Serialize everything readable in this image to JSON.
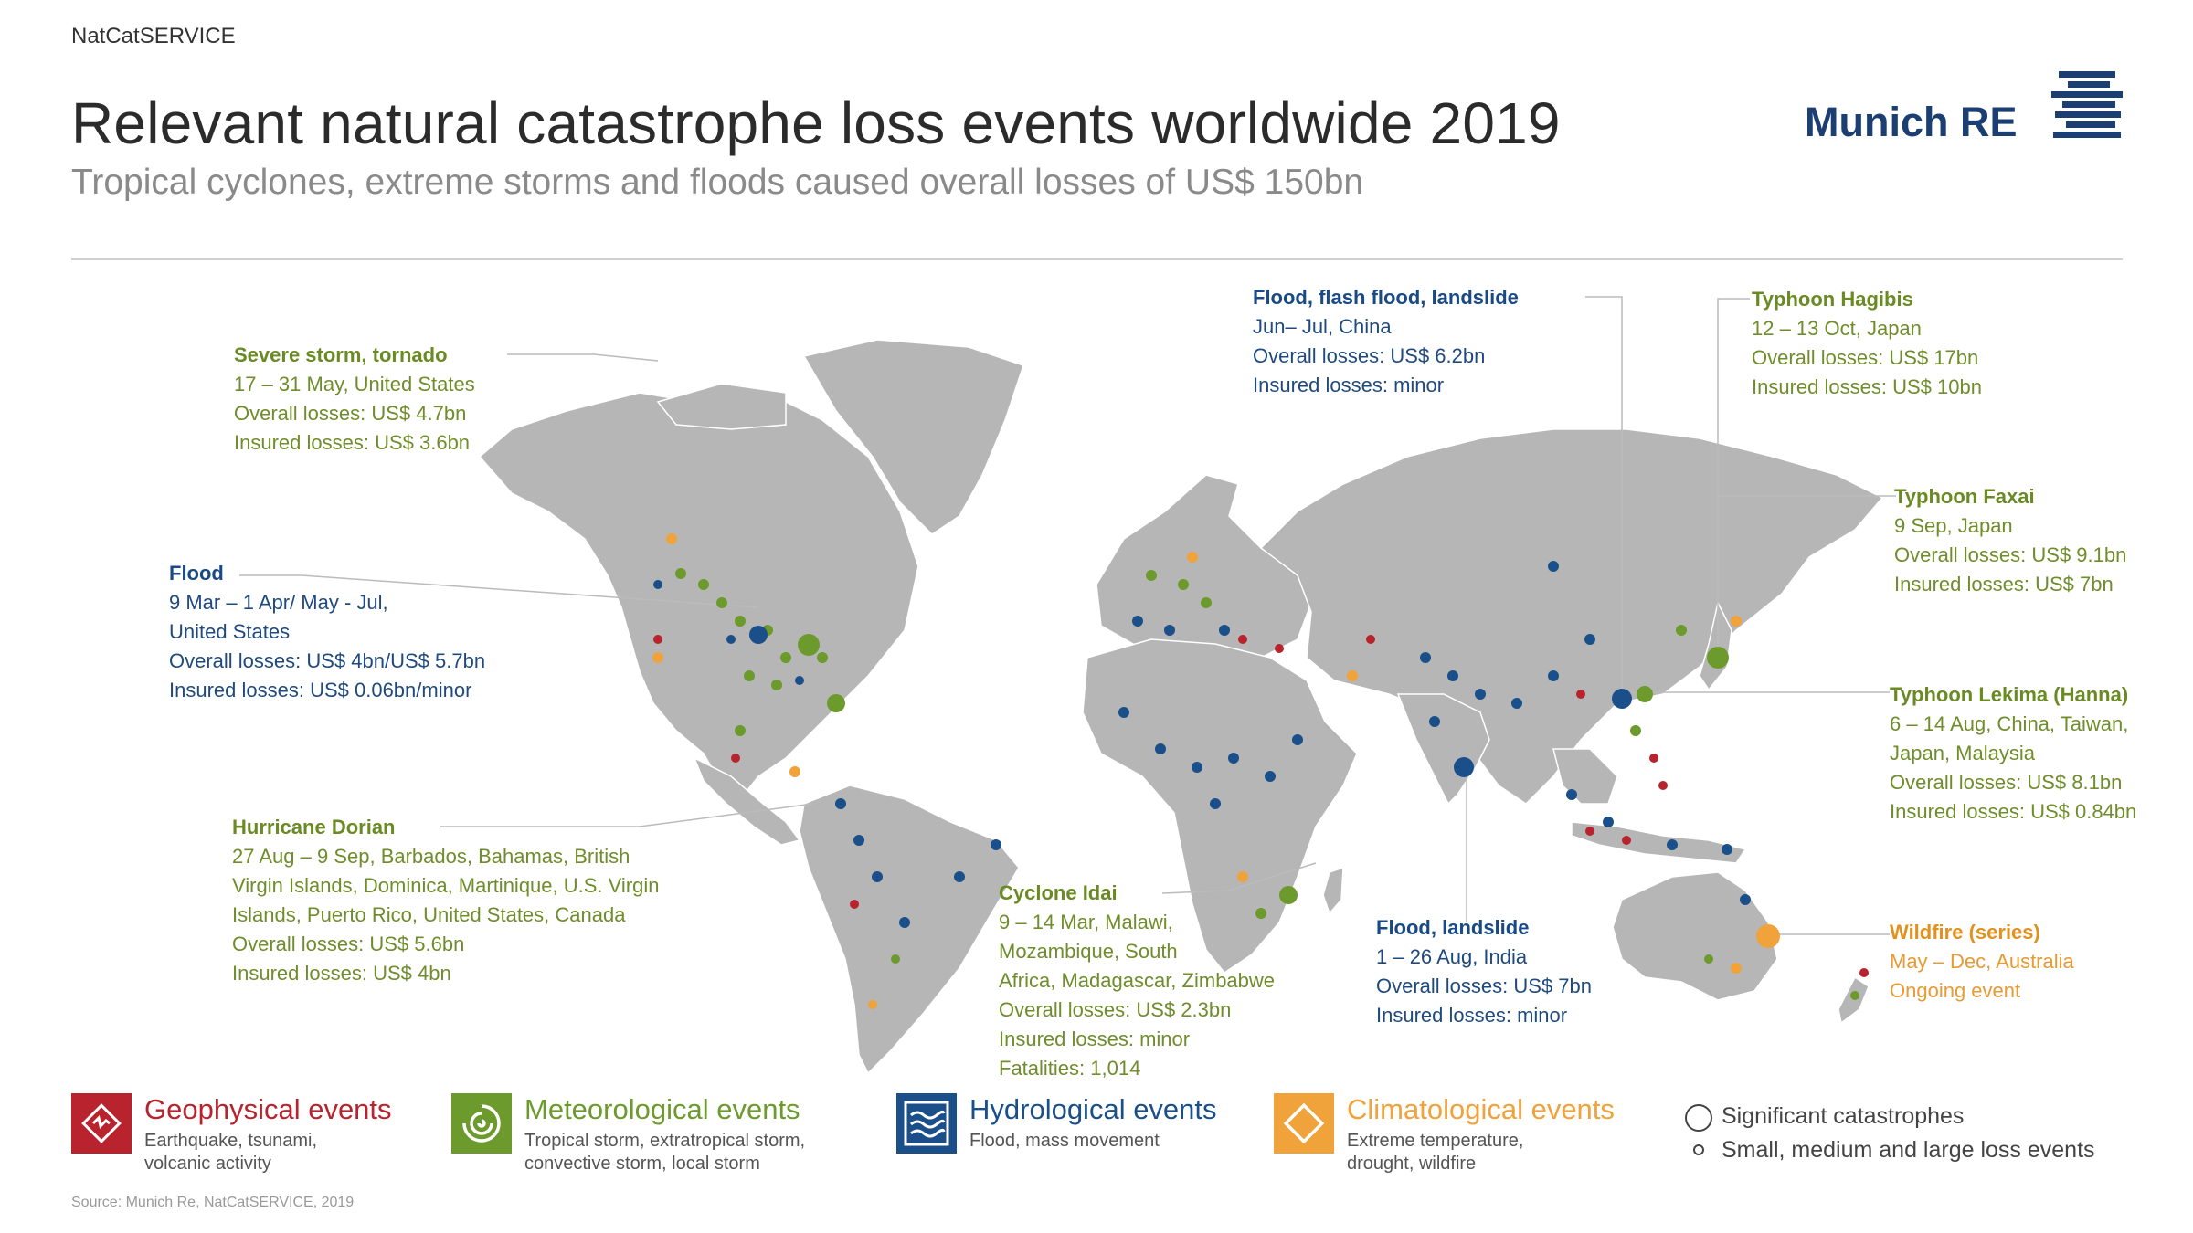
{
  "header": {
    "brand": "NatCatSERVICE",
    "title": "Relevant natural catastrophe loss events worldwide 2019",
    "subtitle": "Tropical cyclones, extreme storms and floods caused overall losses of US$ 150bn",
    "logo": "Munich RE"
  },
  "colors": {
    "geophysical": "#b8232d",
    "meteorological": "#6d9a2c",
    "hydrological": "#1b4f8a",
    "climatological": "#f0a23b",
    "land": "#b6b6b6"
  },
  "callouts": [
    {
      "id": "severe-storm",
      "category": "meteorological",
      "title": "Severe storm, tornado",
      "lines": [
        "17 – 31 May, United States",
        "Overall losses: US$ 4.7bn",
        "Insured losses: US$ 3.6bn"
      ]
    },
    {
      "id": "flood-us",
      "category": "hydrological",
      "title": "Flood",
      "lines": [
        "9 Mar – 1 Apr/ May - Jul,",
        "United States",
        "Overall losses: US$ 4bn/US$ 5.7bn",
        "Insured losses: US$ 0.06bn/minor"
      ]
    },
    {
      "id": "hurricane-dorian",
      "category": "meteorological",
      "title": "Hurricane Dorian",
      "lines": [
        "27 Aug – 9 Sep, Barbados, Bahamas, British",
        "Virgin Islands, Dominica, Martinique, U.S. Virgin",
        "Islands, Puerto Rico, United States, Canada",
        "Overall losses: US$ 5.6bn",
        "Insured losses: US$ 4bn"
      ]
    },
    {
      "id": "cyclone-idai",
      "category": "meteorological",
      "title": "Cyclone Idai",
      "lines": [
        "9 – 14 Mar, Malawi,",
        "Mozambique, South",
        "Africa, Madagascar, Zimbabwe",
        "Overall losses: US$ 2.3bn",
        "Insured losses: minor",
        "Fatalities: 1,014"
      ]
    },
    {
      "id": "flood-china",
      "category": "hydrological",
      "title": "Flood, flash flood, landslide",
      "lines": [
        "Jun– Jul, China",
        "Overall losses: US$ 6.2bn",
        "Insured losses: minor"
      ]
    },
    {
      "id": "flood-india",
      "category": "hydrological",
      "title": "Flood, landslide",
      "lines": [
        "1 – 26 Aug, India",
        "Overall losses: US$ 7bn",
        "Insured losses: minor"
      ]
    },
    {
      "id": "typhoon-hagibis",
      "category": "meteorological",
      "title": "Typhoon Hagibis",
      "lines": [
        "12 – 13 Oct, Japan",
        "Overall losses: US$ 17bn",
        "Insured losses: US$ 10bn"
      ]
    },
    {
      "id": "typhoon-faxai",
      "category": "meteorological",
      "title": "Typhoon Faxai",
      "lines": [
        "9 Sep, Japan",
        "Overall losses: US$ 9.1bn",
        "Insured losses: US$ 7bn"
      ]
    },
    {
      "id": "typhoon-lekima",
      "category": "meteorological",
      "title": "Typhoon Lekima (Hanna)",
      "lines": [
        "6 – 14 Aug, China, Taiwan,",
        "Japan, Malaysia",
        "Overall losses: US$ 8.1bn",
        "Insured losses: US$ 0.84bn"
      ]
    },
    {
      "id": "wildfire",
      "category": "climatological",
      "title": "Wildfire (series)",
      "lines": [
        "May – Dec, Australia",
        "Ongoing event"
      ]
    }
  ],
  "legend": [
    {
      "id": "geophysical",
      "title": "Geophysical events",
      "desc": [
        "Earthquake, tsunami,",
        "volcanic activity"
      ]
    },
    {
      "id": "meteorological",
      "title": "Meteorological events",
      "desc": [
        "Tropical storm, extratropical storm,",
        "convective storm, local storm"
      ]
    },
    {
      "id": "hydrological",
      "title": "Hydrological events",
      "desc": [
        "Flood, mass movement"
      ]
    },
    {
      "id": "climatological",
      "title": "Climatological events",
      "desc": [
        "Extreme temperature,",
        "drought, wildfire"
      ]
    }
  ],
  "size_legend": {
    "large": "Significant catastrophes",
    "small": "Small, medium and large loss events"
  },
  "source": "Source: Munich Re, NatCatSERVICE, 2019"
}
